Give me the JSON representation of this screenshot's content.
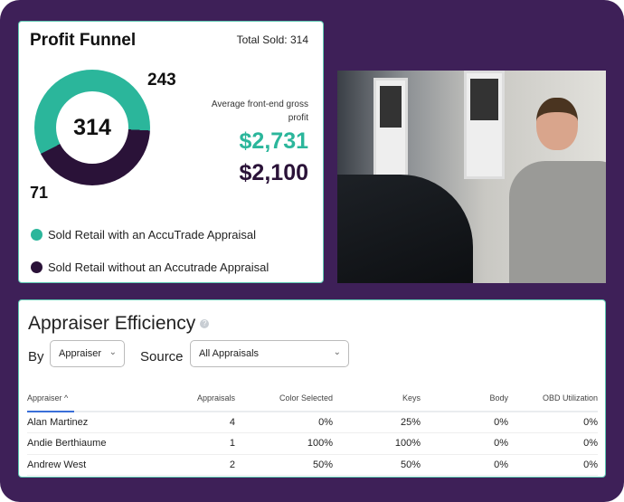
{
  "funnel": {
    "title": "Profit Funnel",
    "total": "Total Sold: 314",
    "center": "314",
    "with_count": "243",
    "without_count": "71",
    "avg_label": "Average front-end gross profit",
    "with_profit": "$2,731",
    "without_profit": "$2,100",
    "legend": [
      "Sold Retail with an AccuTrade Appraisal",
      "Sold Retail without an Accutrade Appraisal"
    ],
    "colors": {
      "with": "#2bb69b",
      "without": "#2a1238"
    }
  },
  "efficiency": {
    "title": "Appraiser Efficiency",
    "help": "?",
    "by_label": "By",
    "by_value": "Appraiser",
    "source_label": "Source",
    "source_value": "All Appraisals",
    "columns": [
      "Appraiser ^",
      "Appraisals",
      "Color Selected",
      "Keys",
      "Body",
      "OBD Utilization"
    ],
    "rows": [
      [
        "Alan Martinez",
        "4",
        "0%",
        "25%",
        "0%",
        "0%"
      ],
      [
        "Andie Berthiaume",
        "1",
        "100%",
        "100%",
        "0%",
        "0%"
      ],
      [
        "Andrew West",
        "2",
        "50%",
        "50%",
        "0%",
        "0%"
      ]
    ]
  }
}
